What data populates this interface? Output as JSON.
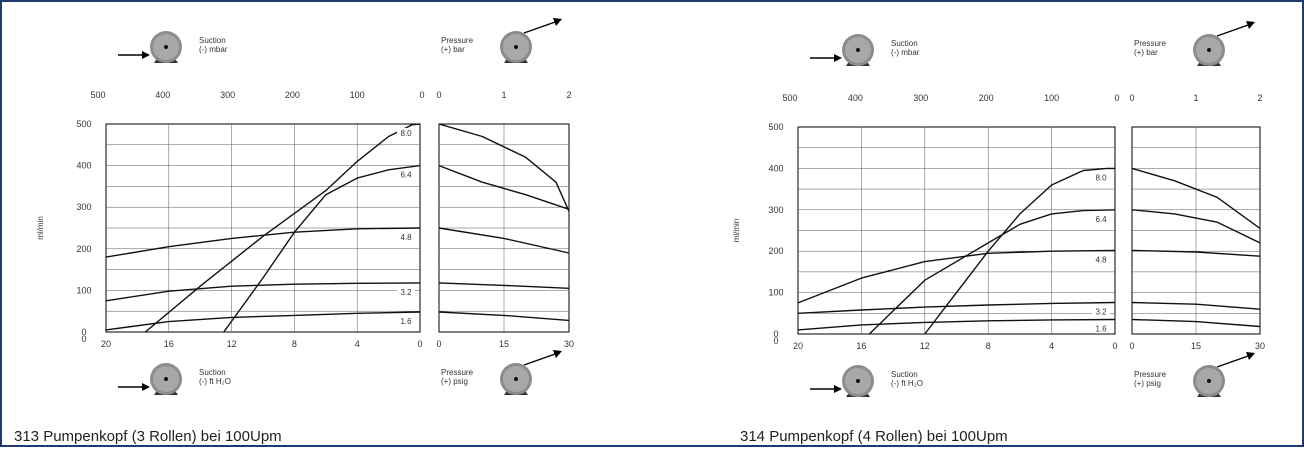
{
  "charts": [
    {
      "caption": "313 Pumpenkopf (3 Rollen) bei 100Upm",
      "suction_top_label": [
        "Suction",
        "(-) mbar"
      ],
      "pressure_top_label": [
        "Pressure",
        "(+) bar"
      ],
      "suction_bottom_label": [
        "Suction",
        "(-) ft H₂O"
      ],
      "pressure_bottom_label": [
        "Pressure",
        "(+) psig"
      ],
      "ylabel": "ml/min"
    },
    {
      "caption": "314 Pumpenkopf (4 Rollen) bei 100Upm",
      "suction_top_label": [
        "Suction",
        "(-) mbar"
      ],
      "pressure_top_label": [
        "Pressure",
        "(+) bar"
      ],
      "suction_bottom_label": [
        "Suction",
        "(-) ft H₂O"
      ],
      "pressure_bottom_label": [
        "Pressure",
        "(+) psig"
      ],
      "ylabel": "ml/min"
    }
  ],
  "chart_data": [
    {
      "type": "line",
      "title": "313 Pumpenkopf (3 Rollen) bei 100Upm",
      "ylabel": "ml/min",
      "ylim": [
        0,
        500
      ],
      "yticks": [
        0,
        100,
        200,
        300,
        400,
        500
      ],
      "suction_axis": {
        "top_label": "Suction (-) mbar",
        "top_ticks": [
          500,
          400,
          300,
          200,
          100,
          0
        ],
        "bottom_label": "Suction (-) ft H2O",
        "bottom_ticks": [
          20,
          16,
          12,
          8,
          4,
          0
        ],
        "xlim_ft_h2o": [
          20,
          0
        ]
      },
      "pressure_axis": {
        "top_label": "Pressure (+) bar",
        "top_ticks": [
          0,
          1,
          2
        ],
        "bottom_label": "Pressure (+) psig",
        "bottom_ticks": [
          0,
          15,
          30
        ],
        "xlim_psig": [
          0,
          30
        ]
      },
      "series": [
        {
          "name": "8.0",
          "suction_x": [
            17.5,
            14,
            10,
            6,
            4,
            2,
            0.5,
            0
          ],
          "suction_y": [
            0,
            110,
            230,
            340,
            410,
            470,
            498,
            500
          ],
          "pressure_x": [
            0,
            10,
            20,
            27,
            30
          ],
          "pressure_y": [
            500,
            470,
            420,
            360,
            290
          ]
        },
        {
          "name": "6.4",
          "suction_x": [
            12.5,
            10,
            8,
            6,
            4,
            2,
            0
          ],
          "suction_y": [
            0,
            130,
            240,
            330,
            370,
            390,
            400
          ],
          "pressure_x": [
            0,
            10,
            20,
            30
          ],
          "pressure_y": [
            400,
            360,
            330,
            295
          ]
        },
        {
          "name": "4.8",
          "suction_x": [
            20,
            16,
            12,
            8,
            4,
            0
          ],
          "suction_y": [
            180,
            205,
            225,
            240,
            248,
            250
          ],
          "pressure_x": [
            0,
            15,
            30
          ],
          "pressure_y": [
            250,
            225,
            190
          ]
        },
        {
          "name": "3.2",
          "suction_x": [
            20,
            16,
            12,
            8,
            4,
            0
          ],
          "suction_y": [
            75,
            98,
            110,
            115,
            117,
            118
          ],
          "pressure_x": [
            0,
            15,
            30
          ],
          "pressure_y": [
            118,
            112,
            105
          ]
        },
        {
          "name": "1.6",
          "suction_x": [
            20,
            16,
            12,
            8,
            4,
            0
          ],
          "suction_y": [
            5,
            25,
            35,
            40,
            45,
            48
          ],
          "pressure_x": [
            0,
            15,
            30
          ],
          "pressure_y": [
            48,
            40,
            28
          ]
        }
      ]
    },
    {
      "type": "line",
      "title": "314 Pumpenkopf (4 Rollen) bei 100Upm",
      "ylabel": "ml/min",
      "ylim": [
        0,
        500
      ],
      "yticks": [
        0,
        100,
        200,
        300,
        400,
        500
      ],
      "suction_axis": {
        "top_label": "Suction (-) mbar",
        "top_ticks": [
          500,
          400,
          300,
          200,
          100,
          0
        ],
        "bottom_label": "Suction (-) ft H2O",
        "bottom_ticks": [
          20,
          16,
          12,
          8,
          4,
          0
        ],
        "xlim_ft_h2o": [
          20,
          0
        ]
      },
      "pressure_axis": {
        "top_label": "Pressure (+) bar",
        "top_ticks": [
          0,
          1,
          2
        ],
        "bottom_label": "Pressure (+) psig",
        "bottom_ticks": [
          0,
          15,
          30
        ],
        "xlim_psig": [
          0,
          30
        ]
      },
      "series": [
        {
          "name": "8.0",
          "suction_x": [
            12,
            10,
            8,
            6,
            4,
            2,
            0.5,
            0
          ],
          "suction_y": [
            0,
            100,
            200,
            290,
            360,
            395,
            400,
            400
          ],
          "pressure_x": [
            0,
            10,
            20,
            30
          ],
          "pressure_y": [
            400,
            370,
            330,
            255
          ]
        },
        {
          "name": "6.4",
          "suction_x": [
            15.5,
            12,
            8,
            6,
            4,
            2,
            0
          ],
          "suction_y": [
            0,
            130,
            220,
            265,
            290,
            298,
            300
          ],
          "pressure_x": [
            0,
            10,
            20,
            30
          ],
          "pressure_y": [
            300,
            290,
            270,
            220
          ]
        },
        {
          "name": "4.8",
          "suction_x": [
            20,
            16,
            12,
            8,
            4,
            0
          ],
          "suction_y": [
            75,
            135,
            175,
            195,
            200,
            202
          ],
          "pressure_x": [
            0,
            15,
            30
          ],
          "pressure_y": [
            202,
            198,
            188
          ]
        },
        {
          "name": "3.2",
          "suction_x": [
            20,
            16,
            12,
            8,
            4,
            0
          ],
          "suction_y": [
            50,
            58,
            65,
            70,
            74,
            76
          ],
          "pressure_x": [
            0,
            15,
            30
          ],
          "pressure_y": [
            76,
            72,
            60
          ]
        },
        {
          "name": "1.6",
          "suction_x": [
            20,
            16,
            12,
            8,
            4,
            0
          ],
          "suction_y": [
            10,
            22,
            28,
            32,
            34,
            35
          ],
          "pressure_x": [
            0,
            15,
            30
          ],
          "pressure_y": [
            35,
            30,
            18
          ]
        }
      ]
    }
  ]
}
